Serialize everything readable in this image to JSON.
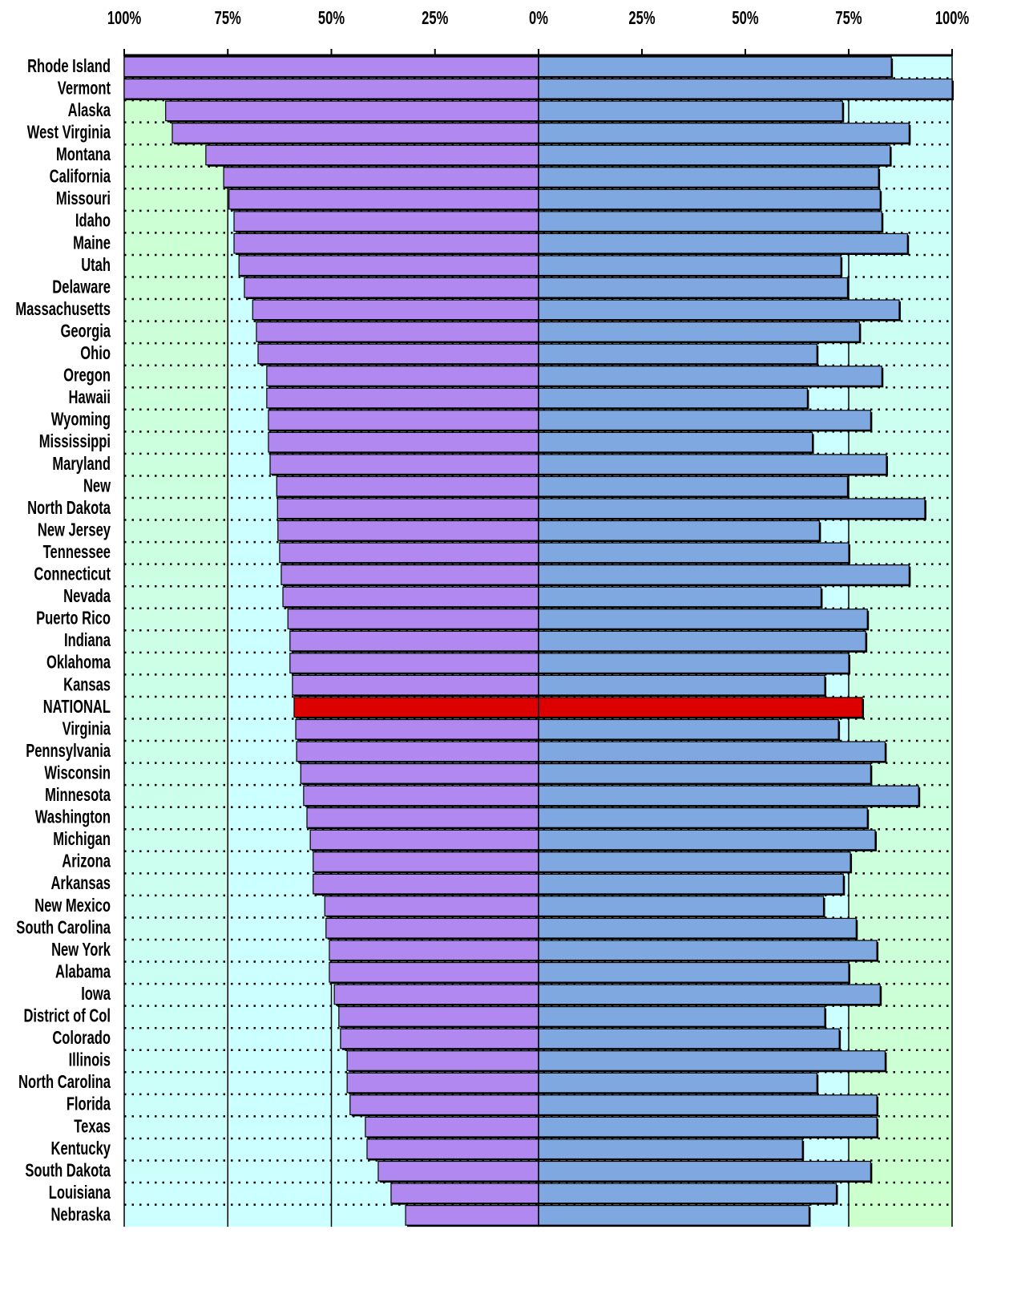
{
  "chart_data": {
    "type": "diverging_bar",
    "orientation": "horizontal",
    "categories": [
      "Rhode Island",
      "Vermont",
      "Alaska",
      "West Virginia",
      "Montana",
      "California",
      "Missouri",
      "Idaho",
      "Maine",
      "Utah",
      "Delaware",
      "Massachusetts",
      "Georgia",
      "Ohio",
      "Oregon",
      "Hawaii",
      "Wyoming",
      "Mississippi",
      "Maryland",
      "New",
      "North Dakota",
      "New Jersey",
      "Tennessee",
      "Connecticut",
      "Nevada",
      "Puerto Rico",
      "Indiana",
      "Oklahoma",
      "Kansas",
      "NATIONAL",
      "Virginia",
      "Pennsylvania",
      "Wisconsin",
      "Minnesota",
      "Washington",
      "Michigan",
      "Arizona",
      "Arkansas",
      "New Mexico",
      "South Carolina",
      "New York",
      "Alabama",
      "Iowa",
      "District of Col",
      "Colorado",
      "Illinois",
      "North Carolina",
      "Florida",
      "Texas",
      "Kentucky",
      "South Dakota",
      "Louisiana",
      "Nebraska"
    ],
    "series": [
      {
        "side": "left",
        "color": "#b088f0",
        "values": [
          100,
          100,
          90,
          88.4,
          80.3,
          76,
          74.7,
          73.5,
          73.5,
          72.3,
          71,
          69,
          68.1,
          67.7,
          65.6,
          65.6,
          65.2,
          65.2,
          64.8,
          63.2,
          63,
          62.9,
          62.5,
          62.1,
          61.7,
          60.5,
          60,
          60,
          59.4,
          59,
          58.6,
          58.4,
          57.4,
          56.7,
          55.9,
          55.1,
          54.4,
          54.4,
          51.6,
          51.3,
          50.5,
          50.5,
          49.3,
          48.2,
          47.8,
          46.2,
          46.2,
          45.5,
          41.8,
          41.4,
          38.7,
          35.6,
          32.1
        ]
      },
      {
        "side": "right",
        "color": "#7fa8e0",
        "values": [
          85.3,
          100,
          73.5,
          89.6,
          85,
          82.2,
          82.6,
          83,
          89.2,
          73.1,
          74.7,
          87.2,
          77.6,
          67.3,
          83,
          65,
          80.3,
          66.2,
          84.1,
          74.7,
          93.4,
          67.9,
          75,
          89.6,
          68.3,
          79.5,
          79.1,
          75,
          69.2,
          78.3,
          72.5,
          83.8,
          80.3,
          91.9,
          79.5,
          81.4,
          75.4,
          73.7,
          68.9,
          76.8,
          81.8,
          75,
          82.6,
          69.2,
          72.7,
          83.8,
          67.3,
          81.8,
          81.8,
          63.8,
          80.3,
          72,
          65.4
        ]
      }
    ],
    "highlight_index": 29,
    "highlight_color": "#dd0000",
    "xlim_left": [
      100,
      0
    ],
    "xlim_right": [
      0,
      100
    ],
    "xticks_left": [
      {
        "value": 100,
        "label": "100%"
      },
      {
        "value": 75,
        "label": "75%"
      },
      {
        "value": 50,
        "label": "50%"
      },
      {
        "value": 25,
        "label": "25%"
      },
      {
        "value": 0,
        "label": "0%"
      }
    ],
    "xticks_right": [
      {
        "value": 25,
        "label": "25%"
      },
      {
        "value": 50,
        "label": "50%"
      },
      {
        "value": 75,
        "label": "75%"
      },
      {
        "value": 100,
        "label": "100%"
      }
    ],
    "ref_lines_left": [
      100,
      75,
      50,
      0
    ],
    "ref_lines_right": [
      75,
      100
    ],
    "grid": "dotted"
  }
}
